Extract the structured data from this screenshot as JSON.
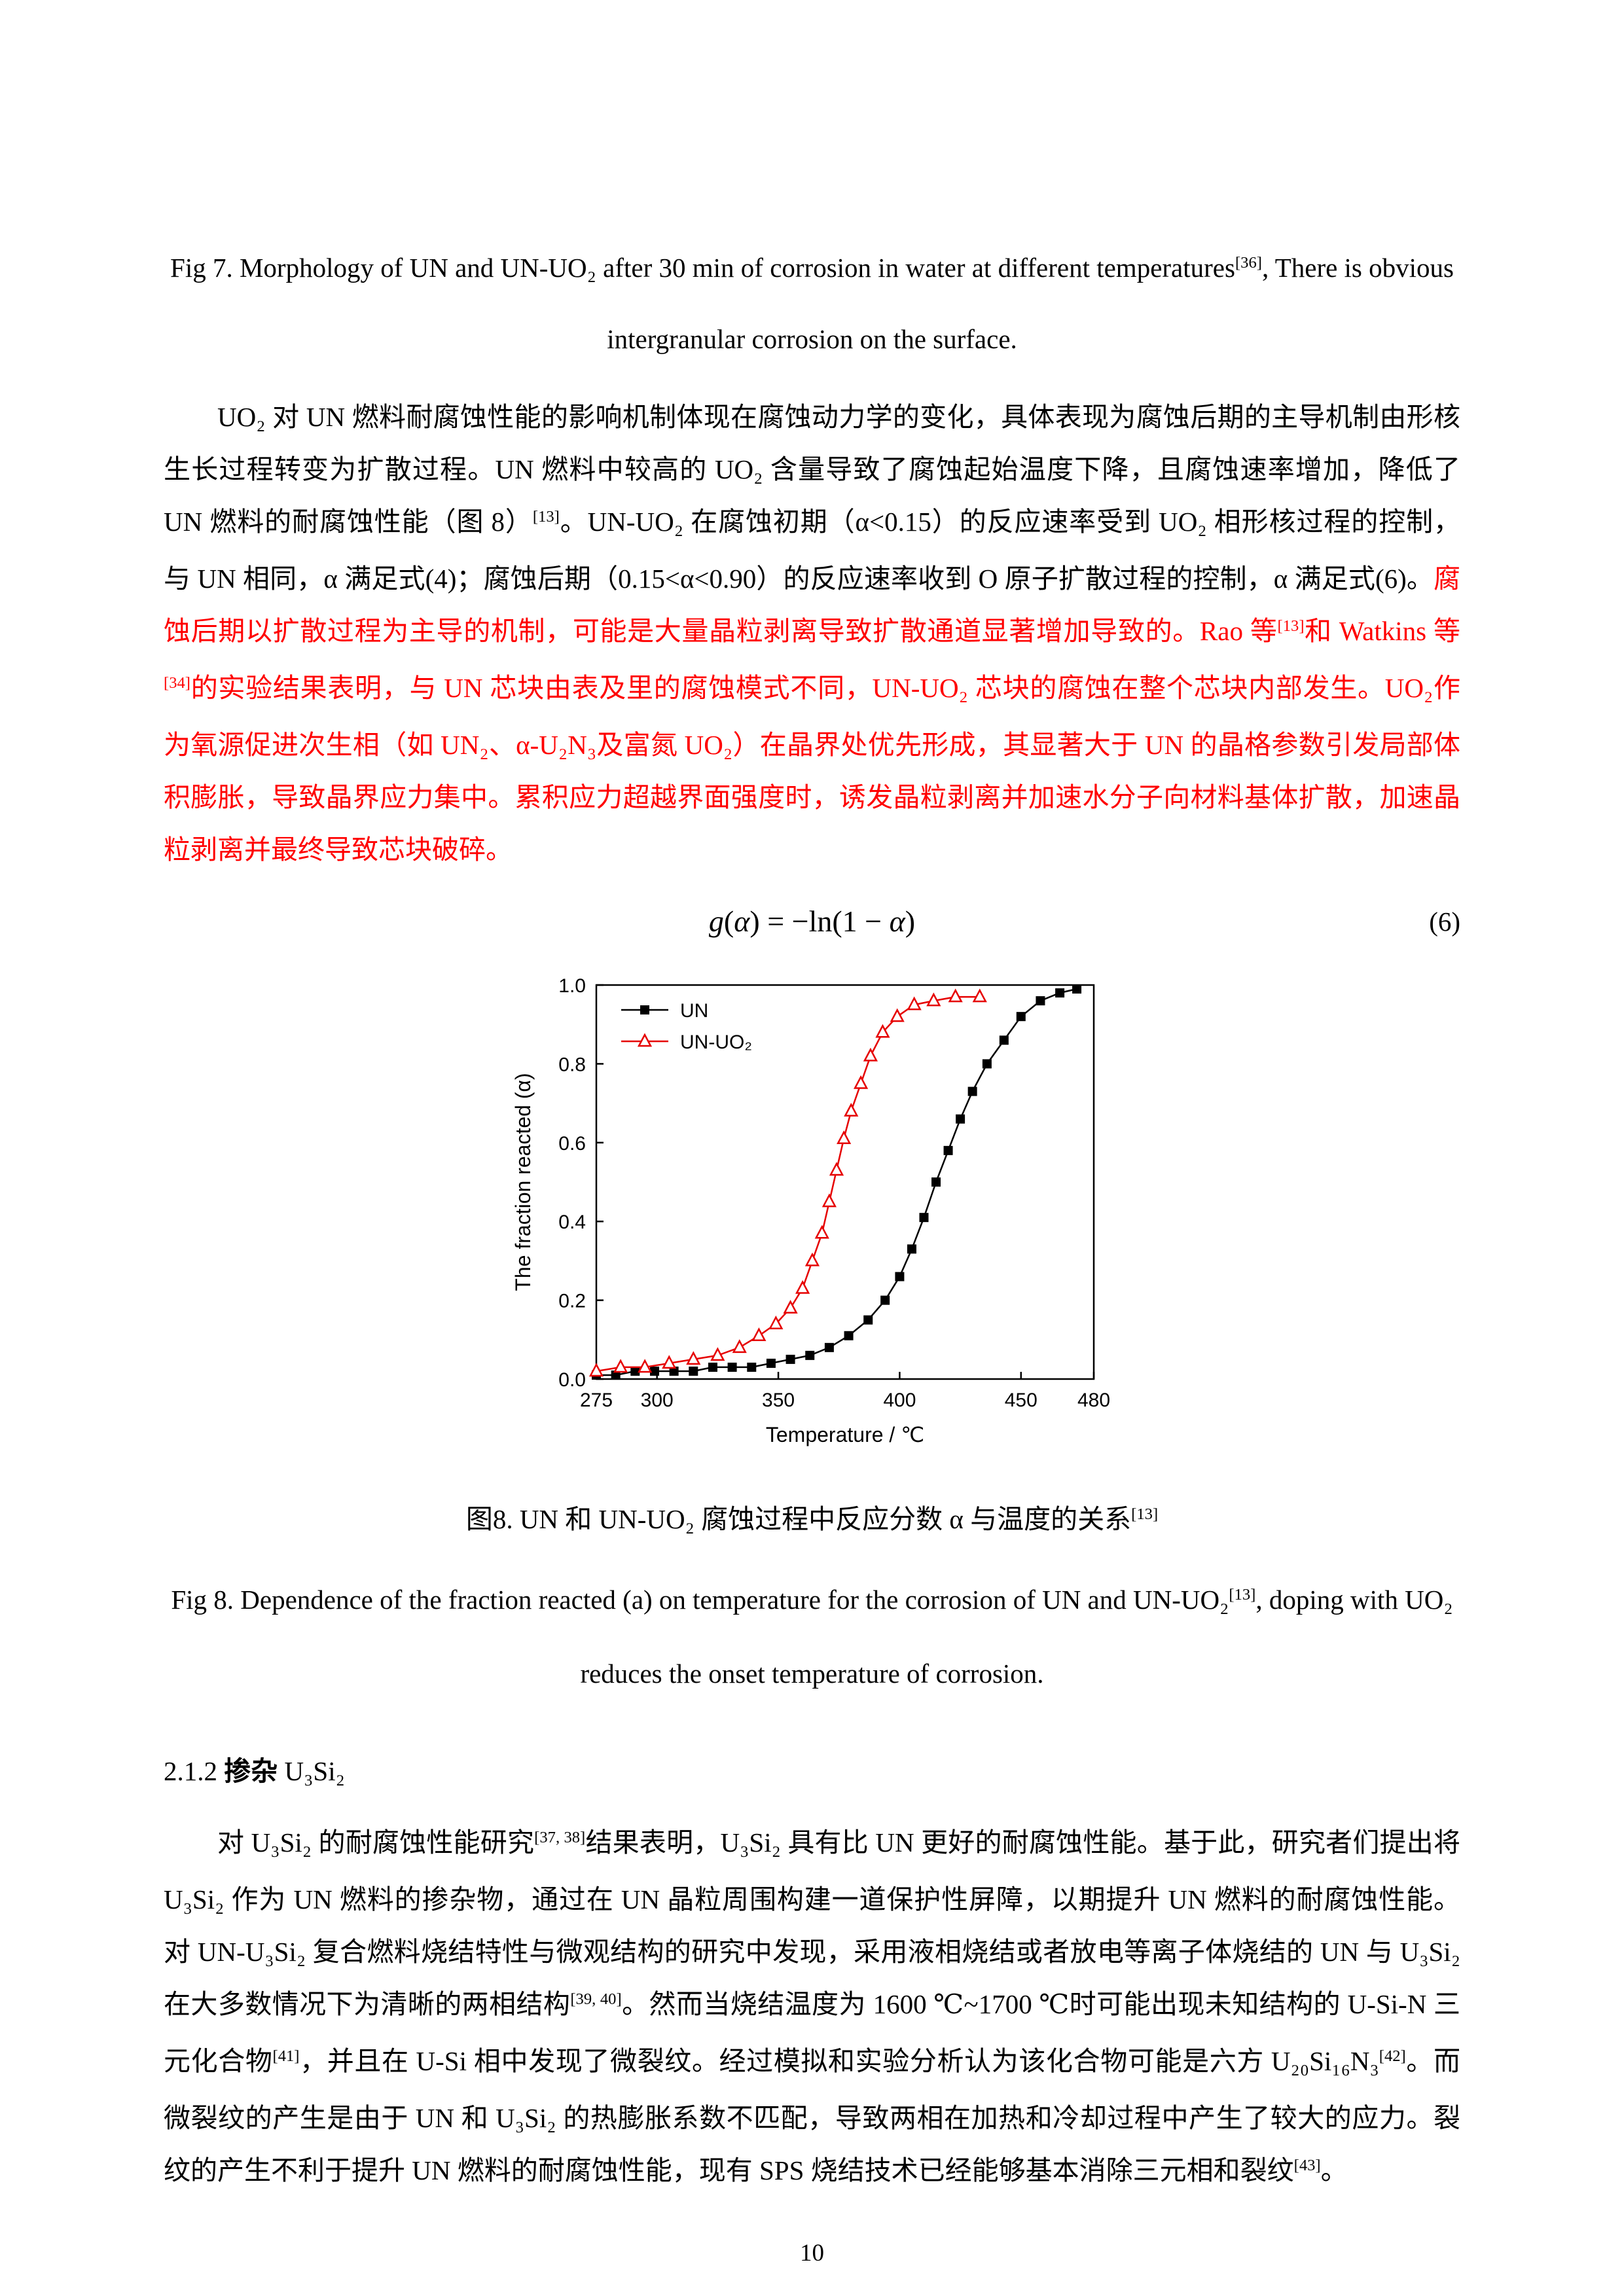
{
  "colors": {
    "text": "#000000",
    "emphasis_red": "#ff0000",
    "series_un": "#000000",
    "series_unuo2": "#e60000"
  },
  "fig7_caption": {
    "runs": [
      {
        "t": "Fig 7.      Morphology of UN and UN-UO₂ after 30 min of corrosion in water at different temperatures",
        "c": ""
      },
      {
        "t": "[36]",
        "c": "sup"
      },
      {
        "t": ", There is obvious intergranular corrosion on the surface.",
        "c": ""
      }
    ]
  },
  "para1": {
    "runs": [
      {
        "t": "UO₂ 对 UN 燃料耐腐蚀性能的影响机制体现在腐蚀动力学的变化，具体表现为腐蚀后期的主导机制由形核生长过程转变为扩散过程。UN 燃料中较高的 UO₂ 含量导致了腐蚀起始温度下降，且腐蚀速率增加，降低了 UN 燃料的耐腐蚀性能（图 8）",
        "c": ""
      },
      {
        "t": "[13]",
        "c": "sup"
      },
      {
        "t": "。UN-UO₂ 在腐蚀初期（α<0.15）的反应速率受到 UO₂ 相形核过程的控制，与 UN 相同，α 满足式(4)；腐蚀后期（0.15<α<0.90）的反应速率收到 O 原子扩散过程的控制，α 满足式(6)。",
        "c": ""
      },
      {
        "t": "腐蚀后期以扩散过程为主导的机制，可能是大量晶粒剥离导致扩散通道显著增加导致的。Rao 等",
        "c": "red"
      },
      {
        "t": "[13]",
        "c": "red sup"
      },
      {
        "t": "和 Watkins 等",
        "c": "red"
      },
      {
        "t": "[34]",
        "c": "red sup"
      },
      {
        "t": "的实验结果表明，与 UN 芯块由表及里的腐蚀模式不同，UN-UO₂ 芯块的腐蚀在整个芯块内部发生。UO₂作为氧源促进次生相（如 UN₂、α-U₂N₃及富氮 UO₂）在晶界处优先形成，其显著大于 UN 的晶格参数引发局部体积膨胀，导致晶界应力集中。累积应力超越界面强度时，诱发晶粒剥离并加速水分子向材料基体扩散，加速晶粒剥离并最终导致芯块破碎。",
        "c": "red"
      }
    ]
  },
  "equation": {
    "runs": [
      {
        "t": "g",
        "c": "i"
      },
      {
        "t": "(",
        "c": ""
      },
      {
        "t": "α",
        "c": "i"
      },
      {
        "t": ") = −ln(1 − ",
        "c": ""
      },
      {
        "t": "α",
        "c": "i"
      },
      {
        "t": ")",
        "c": ""
      }
    ],
    "number": "(6)"
  },
  "chart_data": {
    "type": "line",
    "title": "",
    "xlabel": "Temperature / ℃",
    "ylabel": "The fraction reacted (α)",
    "xlim": [
      275,
      480
    ],
    "ylim": [
      0.0,
      1.0
    ],
    "xticks": [
      275,
      300,
      350,
      400,
      450,
      480
    ],
    "yticks": [
      0.0,
      0.2,
      0.4,
      0.6,
      0.8,
      1.0
    ],
    "grid": false,
    "legend_position": "top-left",
    "series": [
      {
        "name": "UN",
        "color": "#000000",
        "marker": "square-filled",
        "x": [
          275,
          283,
          291,
          299,
          307,
          315,
          323,
          331,
          339,
          347,
          355,
          363,
          371,
          379,
          387,
          394,
          400,
          405,
          410,
          415,
          420,
          425,
          430,
          436,
          443,
          450,
          458,
          466,
          473
        ],
        "y": [
          0.01,
          0.01,
          0.02,
          0.02,
          0.02,
          0.02,
          0.03,
          0.03,
          0.03,
          0.04,
          0.05,
          0.06,
          0.08,
          0.11,
          0.15,
          0.2,
          0.26,
          0.33,
          0.41,
          0.5,
          0.58,
          0.66,
          0.73,
          0.8,
          0.86,
          0.92,
          0.96,
          0.98,
          0.99
        ]
      },
      {
        "name": "UN-UO₂",
        "color": "#e60000",
        "marker": "triangle-open",
        "x": [
          275,
          285,
          295,
          305,
          315,
          325,
          334,
          342,
          349,
          355,
          360,
          364,
          368,
          371,
          374,
          377,
          380,
          384,
          388,
          393,
          399,
          406,
          414,
          423,
          433
        ],
        "y": [
          0.02,
          0.03,
          0.03,
          0.04,
          0.05,
          0.06,
          0.08,
          0.11,
          0.14,
          0.18,
          0.23,
          0.3,
          0.37,
          0.45,
          0.53,
          0.61,
          0.68,
          0.75,
          0.82,
          0.88,
          0.92,
          0.95,
          0.96,
          0.97,
          0.97
        ]
      }
    ]
  },
  "fig8_caption_cn": {
    "runs": [
      {
        "t": "图8.  UN 和 UN-UO₂ 腐蚀过程中反应分数 α 与温度的关系",
        "c": ""
      },
      {
        "t": "[13]",
        "c": "sup"
      }
    ]
  },
  "fig8_caption_en": {
    "runs": [
      {
        "t": "Fig 8.      Dependence of the fraction reacted (a) on temperature for the corrosion of UN and UN-UO₂",
        "c": ""
      },
      {
        "t": "[13]",
        "c": "sup"
      },
      {
        "t": ", doping with UO₂ reduces the onset temperature of corrosion.",
        "c": ""
      }
    ]
  },
  "section_heading": {
    "runs": [
      {
        "t": "2.1.2 ",
        "c": ""
      },
      {
        "t": "掺杂",
        "c": "b"
      },
      {
        "t": " U₃Si₂",
        "c": ""
      }
    ]
  },
  "para2": {
    "runs": [
      {
        "t": "对 U₃Si₂ 的耐腐蚀性能研究",
        "c": ""
      },
      {
        "t": "[37, 38]",
        "c": "sup"
      },
      {
        "t": "结果表明，U₃Si₂ 具有比 UN 更好的耐腐蚀性能。基于此，研究者们提出将 U₃Si₂ 作为 UN 燃料的掺杂物，通过在 UN 晶粒周围构建一道保护性屏障，以期提升 UN 燃料的耐腐蚀性能。对 UN-U₃Si₂ 复合燃料烧结特性与微观结构的研究中发现，采用液相烧结或者放电等离子体烧结的 UN 与 U₃Si₂ 在大多数情况下为清晰的两相结构",
        "c": ""
      },
      {
        "t": "[39, 40]",
        "c": "sup"
      },
      {
        "t": "。然而当烧结温度为 1600 ℃~1700 ℃时可能出现未知结构的 U-Si-N 三元化合物",
        "c": ""
      },
      {
        "t": "[41]",
        "c": "sup"
      },
      {
        "t": "，并且在 U-Si 相中发现了微裂纹。经过模拟和实验分析认为该化合物可能是六方 U₂₀Si₁₆N₃",
        "c": ""
      },
      {
        "t": "[42]",
        "c": "sup"
      },
      {
        "t": "。而微裂纹的产生是由于 UN 和 U₃Si₂ 的热膨胀系数不匹配，导致两相在加热和冷却过程中产生了较大的应力。裂纹的产生不利于提升 UN 燃料的耐腐蚀性能，现有 SPS 烧结技术已经能够基本消除三元相和裂纹",
        "c": ""
      },
      {
        "t": "[43]",
        "c": "sup"
      },
      {
        "t": "。",
        "c": ""
      }
    ]
  },
  "footer": {
    "page_number": "10"
  }
}
